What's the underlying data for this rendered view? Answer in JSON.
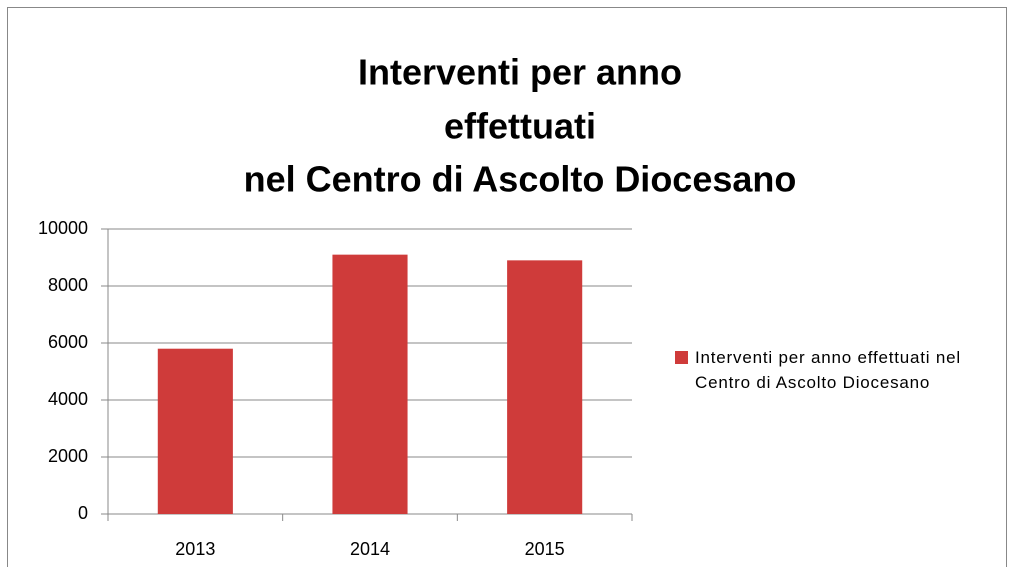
{
  "chart_data": {
    "type": "bar",
    "title": [
      "Interventi per anno",
      "effettuati",
      "nel Centro di Ascolto Diocesano"
    ],
    "categories": [
      "2013",
      "2014",
      "2015"
    ],
    "series": [
      {
        "name": "Interventi per anno effettuati nel Centro di Ascolto Diocesano",
        "color": "#cf3b3a",
        "values": [
          5800,
          9100,
          8900
        ]
      }
    ],
    "ylim": [
      0,
      10000
    ],
    "yticks": [
      0,
      2000,
      4000,
      6000,
      8000,
      10000
    ],
    "grid": true,
    "legend": "right"
  }
}
